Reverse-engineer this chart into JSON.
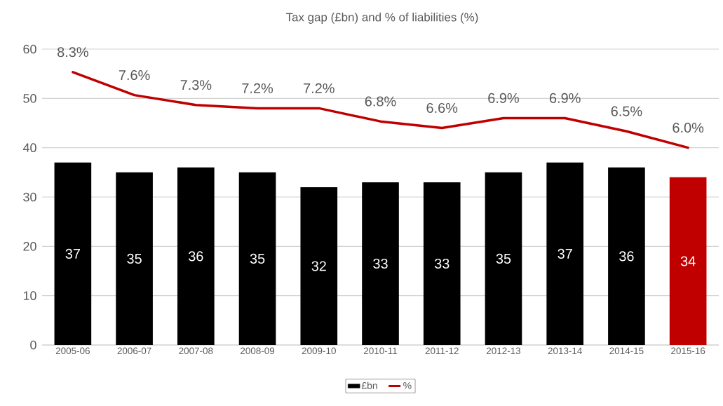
{
  "chart_data": {
    "type": "bar",
    "title": "Tax gap (£bn) and % of liabilities (%)",
    "categories": [
      "2005-06",
      "2006-07",
      "2007-08",
      "2008-09",
      "2009-10",
      "2010-11",
      "2011-12",
      "2012-13",
      "2013-14",
      "2014-15",
      "2015-16"
    ],
    "series": [
      {
        "name": "£bn",
        "color": "#000000",
        "colors": [
          "#000000",
          "#000000",
          "#000000",
          "#000000",
          "#000000",
          "#000000",
          "#000000",
          "#000000",
          "#000000",
          "#000000",
          "#c00000"
        ],
        "values": [
          37,
          35,
          36,
          35,
          32,
          33,
          33,
          35,
          37,
          36,
          34
        ],
        "value_labels": [
          "37",
          "35",
          "36",
          "35",
          "32",
          "33",
          "33",
          "35",
          "37",
          "36",
          "34"
        ]
      },
      {
        "name": "%",
        "type": "line",
        "axis": "y2",
        "color": "#c00000",
        "values": [
          8.3,
          7.6,
          7.3,
          7.2,
          7.2,
          6.8,
          6.6,
          6.9,
          6.9,
          6.5,
          6.0
        ],
        "value_labels": [
          "8.3%",
          "7.6%",
          "7.3%",
          "7.2%",
          "7.2%",
          "6.8%",
          "6.6%",
          "6.9%",
          "6.9%",
          "6.5%",
          "6.0%"
        ]
      }
    ],
    "ylim": [
      0,
      60
    ],
    "yticks": [
      0,
      10,
      20,
      30,
      40,
      50,
      60
    ],
    "y2lim": [
      0,
      9
    ],
    "grid": "y",
    "legend": "bottom",
    "marker": "none",
    "line_style": "solid"
  }
}
